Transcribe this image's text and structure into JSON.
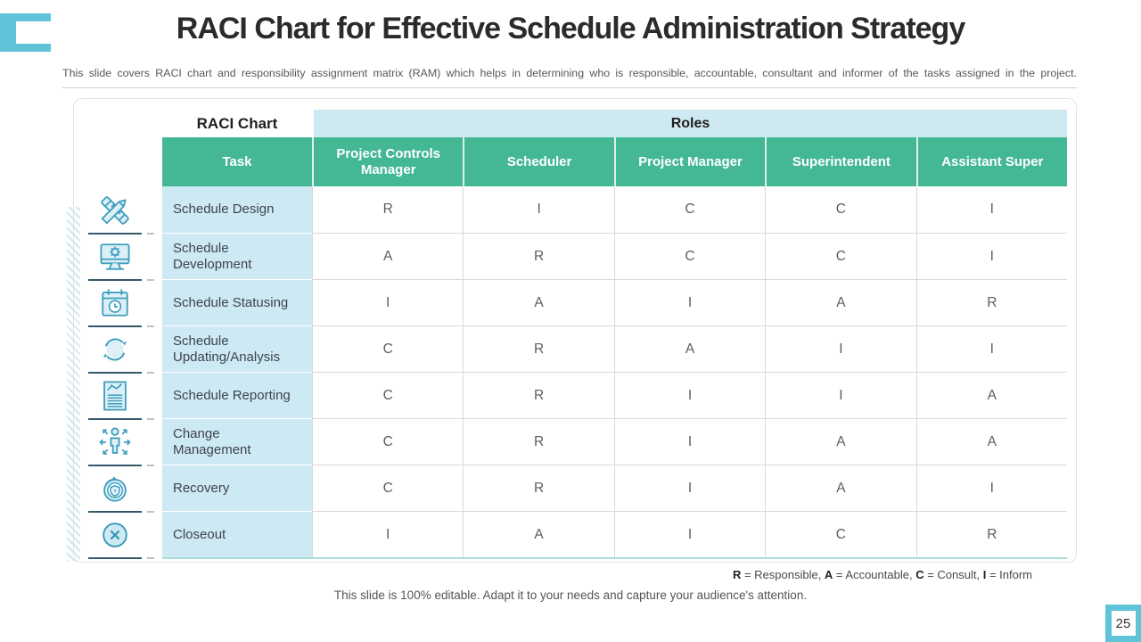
{
  "slide": {
    "title": "RACI Chart for Effective Schedule Administration Strategy",
    "subtitle": "This slide covers RACI chart and responsibility assignment matrix (RAM) which helps in determining who is responsible, accountable, consultant and informer of the tasks assigned in the project.",
    "footer": "This slide is 100% editable. Adapt it to your needs and capture your audience's attention.",
    "page_number": "25"
  },
  "table": {
    "corner_label": "RACI Chart",
    "roles_label": "Roles",
    "columns": [
      "Task",
      "Project Controls Manager",
      "Scheduler",
      "Project Manager",
      "Superintendent",
      "Assistant Super"
    ],
    "rows": [
      {
        "icon": "design-tools-icon",
        "task": "Schedule Design",
        "values": [
          "R",
          "I",
          "C",
          "C",
          "I"
        ]
      },
      {
        "icon": "monitor-gear-icon",
        "task": "Schedule Development",
        "values": [
          "A",
          "R",
          "C",
          "C",
          "I"
        ]
      },
      {
        "icon": "calendar-clock-icon",
        "task": "Schedule Statusing",
        "values": [
          "I",
          "A",
          "I",
          "A",
          "R"
        ]
      },
      {
        "icon": "sync-arrows-icon",
        "task": "Schedule Updating/Analysis",
        "values": [
          "C",
          "R",
          "A",
          "I",
          "I"
        ]
      },
      {
        "icon": "report-document-icon",
        "task": "Schedule Reporting",
        "values": [
          "C",
          "R",
          "I",
          "I",
          "A"
        ]
      },
      {
        "icon": "person-arrows-icon",
        "task": "Change Management",
        "values": [
          "C",
          "R",
          "I",
          "A",
          "A"
        ]
      },
      {
        "icon": "shield-refresh-icon",
        "task": "Recovery",
        "values": [
          "C",
          "R",
          "I",
          "A",
          "I"
        ]
      },
      {
        "icon": "close-circle-icon",
        "task": "Closeout",
        "values": [
          "I",
          "A",
          "I",
          "C",
          "R"
        ]
      }
    ]
  },
  "legend": {
    "parts": [
      {
        "key": "R",
        "label": "Responsible"
      },
      {
        "key": "A",
        "label": "Accountable"
      },
      {
        "key": "C",
        "label": "Consult"
      },
      {
        "key": "I",
        "label": "Inform"
      }
    ]
  },
  "colors": {
    "green": "#44b795",
    "lightblue": "#cfe9f2",
    "taskblue": "#cde9f4",
    "sky": "#5fc4d8",
    "icon_stroke": "#3f9fbe"
  }
}
